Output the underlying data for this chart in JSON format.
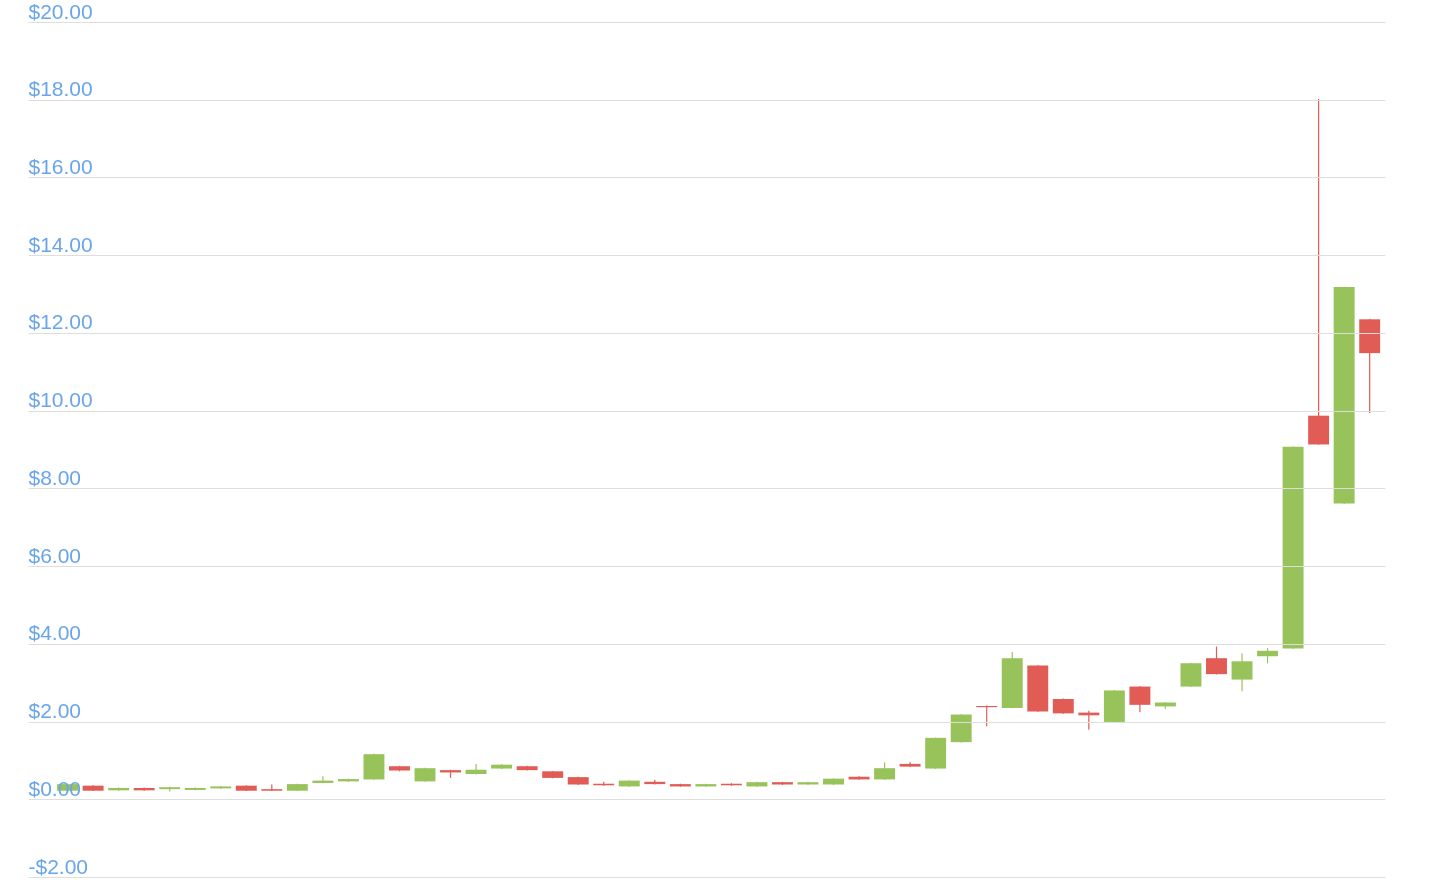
{
  "chart_data": {
    "type": "candlestick",
    "categories": [
      null,
      null,
      null,
      null,
      null,
      null,
      null,
      null,
      null,
      null,
      null,
      null,
      null,
      null,
      null,
      null,
      null,
      null,
      null,
      null,
      null,
      null,
      null,
      null,
      null,
      null,
      null,
      null,
      null,
      null,
      null,
      null,
      null,
      null,
      null,
      null,
      null,
      null,
      null,
      null,
      null,
      null,
      null,
      null,
      null,
      null,
      null,
      null,
      null,
      null,
      null,
      null
    ],
    "ohlc": [
      [
        0.22,
        0.4,
        0.2,
        0.39
      ],
      [
        0.35,
        0.36,
        0.21,
        0.22
      ],
      [
        0.23,
        0.3,
        0.22,
        0.29
      ],
      [
        0.29,
        0.3,
        0.22,
        0.23
      ],
      [
        0.26,
        0.32,
        0.2,
        0.31
      ],
      [
        0.24,
        0.3,
        0.23,
        0.29
      ],
      [
        0.28,
        0.34,
        0.27,
        0.33
      ],
      [
        0.35,
        0.36,
        0.21,
        0.22
      ],
      [
        0.26,
        0.38,
        0.21,
        0.22
      ],
      [
        0.22,
        0.4,
        0.21,
        0.39
      ],
      [
        0.42,
        0.59,
        0.41,
        0.48
      ],
      [
        0.46,
        0.53,
        0.45,
        0.52
      ],
      [
        0.51,
        1.17,
        0.5,
        1.16
      ],
      [
        0.85,
        0.86,
        0.72,
        0.74
      ],
      [
        0.46,
        0.81,
        0.45,
        0.8
      ],
      [
        0.75,
        0.76,
        0.55,
        0.69
      ],
      [
        0.65,
        0.91,
        0.64,
        0.76
      ],
      [
        0.79,
        0.9,
        0.78,
        0.89
      ],
      [
        0.85,
        0.86,
        0.74,
        0.75
      ],
      [
        0.72,
        0.73,
        0.54,
        0.55
      ],
      [
        0.57,
        0.58,
        0.37,
        0.38
      ],
      [
        0.4,
        0.45,
        0.35,
        0.36
      ],
      [
        0.33,
        0.49,
        0.32,
        0.48
      ],
      [
        0.45,
        0.5,
        0.38,
        0.39
      ],
      [
        0.39,
        0.4,
        0.32,
        0.33
      ],
      [
        0.33,
        0.4,
        0.32,
        0.39
      ],
      [
        0.4,
        0.41,
        0.35,
        0.36
      ],
      [
        0.33,
        0.45,
        0.32,
        0.44
      ],
      [
        0.44,
        0.45,
        0.37,
        0.38
      ],
      [
        0.38,
        0.45,
        0.37,
        0.44
      ],
      [
        0.38,
        0.54,
        0.37,
        0.53
      ],
      [
        0.58,
        0.59,
        0.5,
        0.51
      ],
      [
        0.51,
        0.95,
        0.5,
        0.8
      ],
      [
        0.91,
        0.95,
        0.83,
        0.84
      ],
      [
        0.79,
        1.59,
        0.78,
        1.58
      ],
      [
        1.47,
        2.19,
        1.46,
        2.18
      ],
      [
        2.4,
        2.41,
        1.88,
        2.37
      ],
      [
        2.35,
        3.79,
        2.34,
        3.63
      ],
      [
        3.44,
        3.45,
        2.25,
        2.26
      ],
      [
        2.58,
        2.59,
        2.2,
        2.21
      ],
      [
        2.23,
        2.28,
        1.79,
        2.16
      ],
      [
        1.99,
        2.81,
        1.98,
        2.8
      ],
      [
        2.9,
        2.91,
        2.24,
        2.43
      ],
      [
        2.39,
        2.5,
        2.33,
        2.49
      ],
      [
        2.9,
        3.51,
        2.89,
        3.5
      ],
      [
        3.63,
        3.93,
        3.21,
        3.22
      ],
      [
        3.08,
        3.75,
        2.78,
        3.55
      ],
      [
        3.68,
        3.89,
        3.5,
        3.82
      ],
      [
        3.88,
        9.08,
        3.87,
        9.07
      ],
      [
        9.87,
        18.02,
        9.12,
        9.13
      ],
      [
        7.61,
        13.19,
        7.6,
        13.18
      ],
      [
        12.35,
        12.36,
        9.94,
        11.48
      ]
    ],
    "colors": [
      "#98c35a",
      "#e05c55",
      "#98c35a",
      "#e05c55",
      "#98c35a",
      "#98c35a",
      "#98c35a",
      "#e05c55",
      "#e05c55",
      "#98c35a",
      "#98c35a",
      "#98c35a",
      "#98c35a",
      "#e05c55",
      "#98c35a",
      "#e05c55",
      "#98c35a",
      "#98c35a",
      "#e05c55",
      "#e05c55",
      "#e05c55",
      "#e05c55",
      "#98c35a",
      "#e05c55",
      "#e05c55",
      "#98c35a",
      "#e05c55",
      "#98c35a",
      "#e05c55",
      "#98c35a",
      "#98c35a",
      "#e05c55",
      "#98c35a",
      "#e05c55",
      "#98c35a",
      "#98c35a",
      "#e05c55",
      "#98c35a",
      "#e05c55",
      "#e05c55",
      "#e05c55",
      "#98c35a",
      "#e05c55",
      "#98c35a",
      "#98c35a",
      "#e05c55",
      "#98c35a",
      "#98c35a",
      "#98c35a",
      "#e05c55",
      "#98c35a",
      "#e05c55"
    ],
    "ylim": [
      -2,
      20
    ],
    "yticks": [
      {
        "value": -2,
        "label": "-$2.00"
      },
      {
        "value": 0,
        "label": "$0.00"
      },
      {
        "value": 2,
        "label": "$2.00"
      },
      {
        "value": 4,
        "label": "$4.00"
      },
      {
        "value": 6,
        "label": "$6.00"
      },
      {
        "value": 8,
        "label": "$8.00"
      },
      {
        "value": 10,
        "label": "$10.00"
      },
      {
        "value": 12,
        "label": "$12.00"
      },
      {
        "value": 14,
        "label": "$14.00"
      },
      {
        "value": 16,
        "label": "$16.00"
      },
      {
        "value": 18,
        "label": "$18.00"
      },
      {
        "value": 20,
        "label": "$20.00"
      }
    ],
    "grid": "y",
    "tick_labels": "y"
  }
}
